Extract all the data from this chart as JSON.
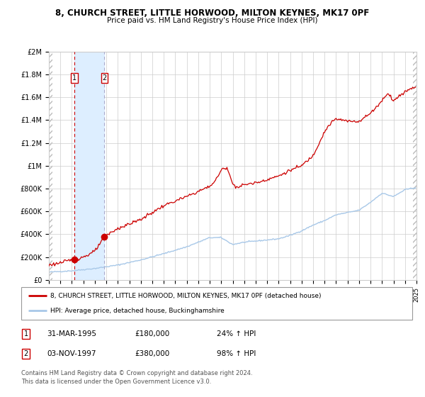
{
  "title": "8, CHURCH STREET, LITTLE HORWOOD, MILTON KEYNES, MK17 0PF",
  "subtitle": "Price paid vs. HM Land Registry's House Price Index (HPI)",
  "ylim": [
    0,
    2000000
  ],
  "yticks": [
    0,
    200000,
    400000,
    600000,
    800000,
    1000000,
    1200000,
    1400000,
    1600000,
    1800000,
    2000000
  ],
  "ytick_labels": [
    "£0",
    "£200K",
    "£400K",
    "£600K",
    "£800K",
    "£1M",
    "£1.2M",
    "£1.4M",
    "£1.6M",
    "£1.8M",
    "£2M"
  ],
  "sale1_price": 180000,
  "sale1_label": "1",
  "sale2_price": 380000,
  "sale2_label": "2",
  "sale1_x": 1995.2083,
  "sale2_x": 1997.8333,
  "hpi_line_color": "#a8c8e8",
  "price_line_color": "#cc0000",
  "sale_dot_color": "#cc0000",
  "vspan_color": "#ddeeff",
  "vline1_color": "#cc0000",
  "vline2_color": "#aaaacc",
  "legend1_label": "8, CHURCH STREET, LITTLE HORWOOD, MILTON KEYNES, MK17 0PF (detached house)",
  "legend2_label": "HPI: Average price, detached house, Buckinghamshire",
  "table_row1": [
    "1",
    "31-MAR-1995",
    "£180,000",
    "24% ↑ HPI"
  ],
  "table_row2": [
    "2",
    "03-NOV-1997",
    "£380,000",
    "98% ↑ HPI"
  ],
  "footer": "Contains HM Land Registry data © Crown copyright and database right 2024.\nThis data is licensed under the Open Government Licence v3.0.",
  "grid_color": "#cccccc",
  "title_fontsize": 8.5,
  "subtitle_fontsize": 7.5,
  "x_start_year": 1993,
  "x_end_year": 2025
}
